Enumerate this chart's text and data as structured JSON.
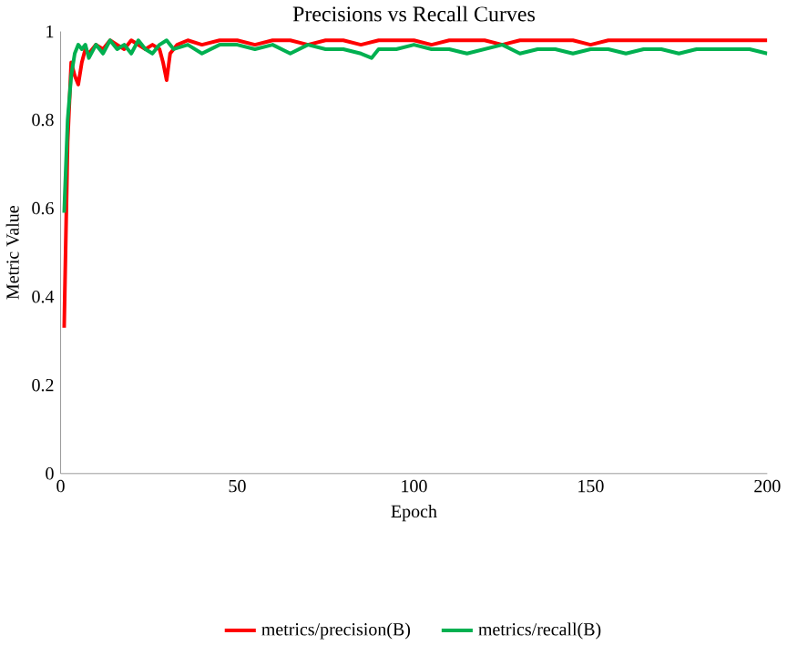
{
  "chart_data": {
    "type": "line",
    "title": "Precisions vs Recall Curves",
    "xlabel": "Epoch",
    "ylabel": "Metric Value",
    "xlim": [
      0,
      200
    ],
    "ylim": [
      0,
      1
    ],
    "xticks": [
      0,
      50,
      100,
      150,
      200
    ],
    "yticks": [
      0,
      0.2,
      0.4,
      0.6,
      0.8,
      1
    ],
    "legend": "bottom",
    "grid": false,
    "marker": "none",
    "line_style": "solid",
    "series": [
      {
        "name": "metrics/precision(B)",
        "color": "#ff0000",
        "x": [
          1,
          2,
          3,
          4,
          5,
          6,
          7,
          8,
          10,
          12,
          14,
          16,
          18,
          20,
          22,
          24,
          26,
          28,
          29,
          30,
          31,
          33,
          36,
          40,
          45,
          50,
          55,
          60,
          65,
          70,
          75,
          80,
          85,
          90,
          95,
          100,
          105,
          110,
          115,
          120,
          125,
          130,
          135,
          140,
          145,
          150,
          155,
          160,
          165,
          170,
          175,
          180,
          185,
          190,
          195,
          200
        ],
        "values": [
          0.33,
          0.75,
          0.93,
          0.9,
          0.88,
          0.93,
          0.96,
          0.95,
          0.97,
          0.96,
          0.98,
          0.97,
          0.96,
          0.98,
          0.97,
          0.96,
          0.97,
          0.96,
          0.93,
          0.89,
          0.95,
          0.97,
          0.98,
          0.97,
          0.98,
          0.98,
          0.97,
          0.98,
          0.98,
          0.97,
          0.98,
          0.98,
          0.97,
          0.98,
          0.98,
          0.98,
          0.97,
          0.98,
          0.98,
          0.98,
          0.97,
          0.98,
          0.98,
          0.98,
          0.98,
          0.97,
          0.98,
          0.98,
          0.98,
          0.98,
          0.98,
          0.98,
          0.98,
          0.98,
          0.98,
          0.98
        ]
      },
      {
        "name": "metrics/recall(B)",
        "color": "#00b050",
        "x": [
          1,
          2,
          3,
          4,
          5,
          6,
          7,
          8,
          10,
          12,
          14,
          16,
          18,
          20,
          22,
          24,
          26,
          28,
          30,
          32,
          36,
          40,
          45,
          50,
          55,
          60,
          65,
          70,
          75,
          80,
          85,
          88,
          90,
          95,
          100,
          105,
          110,
          115,
          120,
          125,
          130,
          135,
          140,
          145,
          150,
          155,
          160,
          165,
          170,
          175,
          180,
          185,
          190,
          195,
          200
        ],
        "values": [
          0.59,
          0.8,
          0.9,
          0.95,
          0.97,
          0.96,
          0.97,
          0.94,
          0.97,
          0.95,
          0.98,
          0.96,
          0.97,
          0.95,
          0.98,
          0.96,
          0.95,
          0.97,
          0.98,
          0.96,
          0.97,
          0.95,
          0.97,
          0.97,
          0.96,
          0.97,
          0.95,
          0.97,
          0.96,
          0.96,
          0.95,
          0.94,
          0.96,
          0.96,
          0.97,
          0.96,
          0.96,
          0.95,
          0.96,
          0.97,
          0.95,
          0.96,
          0.96,
          0.95,
          0.96,
          0.96,
          0.95,
          0.96,
          0.96,
          0.95,
          0.96,
          0.96,
          0.96,
          0.96,
          0.95
        ]
      }
    ]
  }
}
